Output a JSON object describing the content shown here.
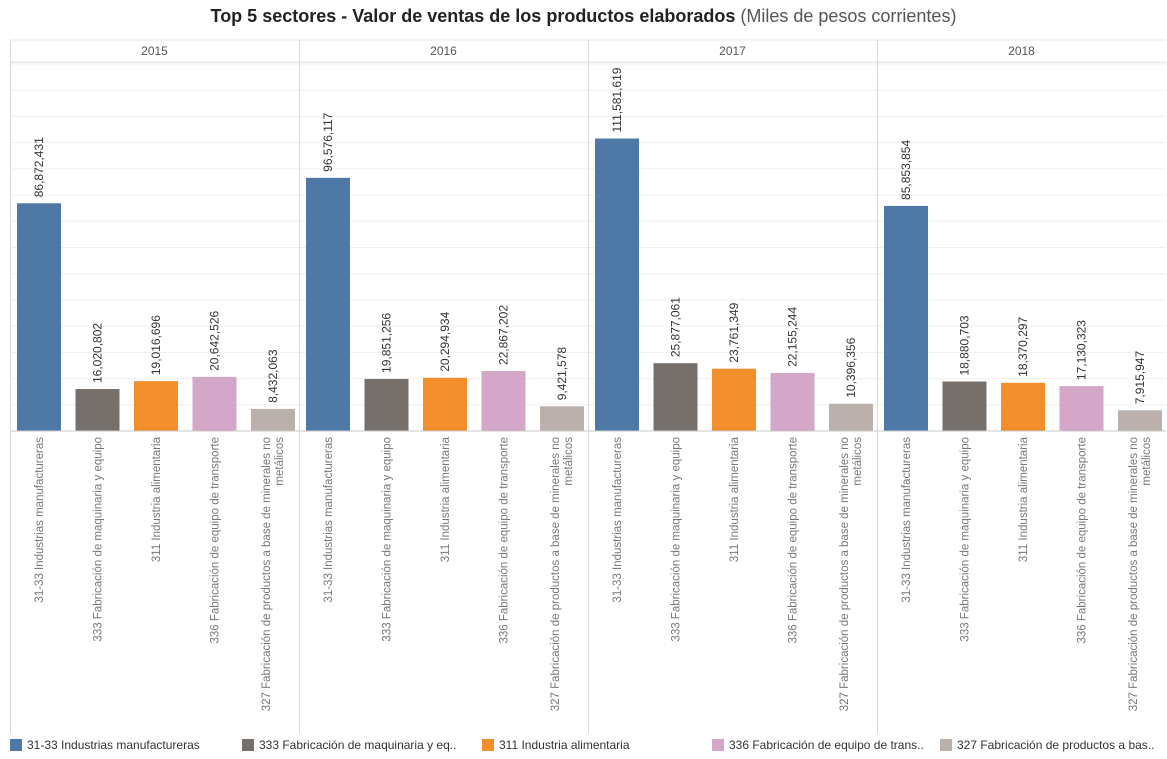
{
  "title": {
    "main": "Top 5 sectores - Valor de ventas de los productos elaborados",
    "sub": "(Miles de pesos corrientes)"
  },
  "chart_data": {
    "type": "bar",
    "panels": [
      "2015",
      "2016",
      "2017",
      "2018"
    ],
    "categories": [
      "31-33 Industrias manufactureras",
      "333 Fabricación de maquinaria y equipo",
      "311 Industria alimentaria",
      "336 Fabricación de equipo de transporte",
      "327 Fabricación de productos a base de minerales no metálicos"
    ],
    "category_labels": [
      [
        "31-33 Industrias manufactureras"
      ],
      [
        "333 Fabricación de maquinaria y equipo"
      ],
      [
        "311 Industria alimentaria"
      ],
      [
        "336 Fabricación de equipo de transporte"
      ],
      [
        "327 Fabricación de productos a base de minerales no",
        "metálicos"
      ]
    ],
    "values": [
      [
        86872431,
        16020802,
        19016696,
        20642526,
        8432063
      ],
      [
        96576117,
        19851256,
        20294934,
        22867202,
        9421578
      ],
      [
        111581619,
        25877061,
        23761349,
        22155244,
        10396356
      ],
      [
        85853854,
        18880703,
        18370297,
        17130323,
        7915947
      ]
    ],
    "value_labels": [
      [
        "86,872,431",
        "16,020,802",
        "19,016,696",
        "20,642,526",
        "8,432,063"
      ],
      [
        "96,576,117",
        "19,851,256",
        "20,294,934",
        "22,867,202",
        "9,421,578"
      ],
      [
        "111,581,619",
        "25,877,061",
        "23,761,349",
        "22,155,244",
        "10,396,356"
      ],
      [
        "85,853,854",
        "18,880,703",
        "18,370,297",
        "17,130,323",
        "7,915,947"
      ]
    ],
    "colors": [
      "#4e79a7",
      "#76706c",
      "#f28e2b",
      "#d4a6c8",
      "#bab0ac"
    ],
    "ylim": [
      0,
      140000000
    ],
    "grid": true,
    "legend": {
      "placement": "bottom",
      "entries": [
        "31-33 Industrias manufactureras",
        "333 Fabricación de maquinaria y eq..",
        "311 Industria alimentaria",
        "336 Fabricación de equipo de trans..",
        "327 Fabricación de productos a bas.."
      ]
    }
  }
}
